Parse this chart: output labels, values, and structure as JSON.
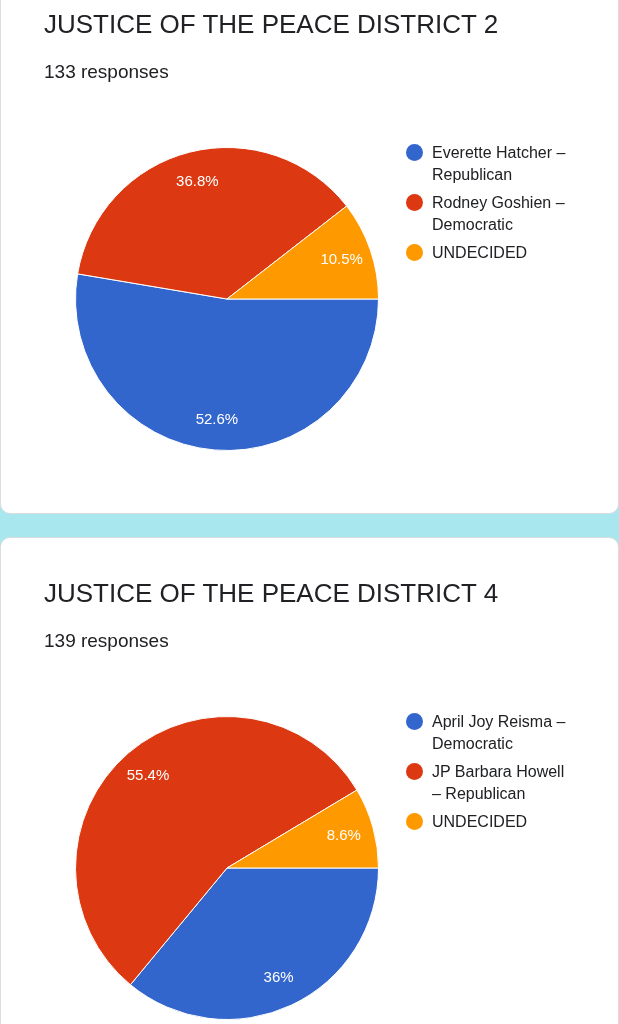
{
  "chart_data": [
    {
      "type": "pie",
      "title": "JUSTICE OF THE PEACE DISTRICT 2",
      "subtitle": "133 responses",
      "categories": [
        "Everette Hatcher – Republican",
        "Rodney Goshien – Democratic",
        "UNDECIDED"
      ],
      "values": [
        52.6,
        36.8,
        10.5
      ],
      "colors": [
        "#3366cc",
        "#dc3912",
        "#ff9900"
      ],
      "value_labels": [
        "52.6%",
        "36.8%",
        "10.5%"
      ],
      "legend": "right"
    },
    {
      "type": "pie",
      "title": "JUSTICE OF THE PEACE DISTRICT 4",
      "subtitle": "139 responses",
      "categories": [
        "April Joy Reisma – Democratic",
        "JP Barbara Howell – Republican",
        "UNDECIDED"
      ],
      "values": [
        36,
        55.4,
        8.6
      ],
      "colors": [
        "#3366cc",
        "#dc3912",
        "#ff9900"
      ],
      "value_labels": [
        "36%",
        "55.4%",
        "8.6%"
      ],
      "legend": "right"
    }
  ]
}
